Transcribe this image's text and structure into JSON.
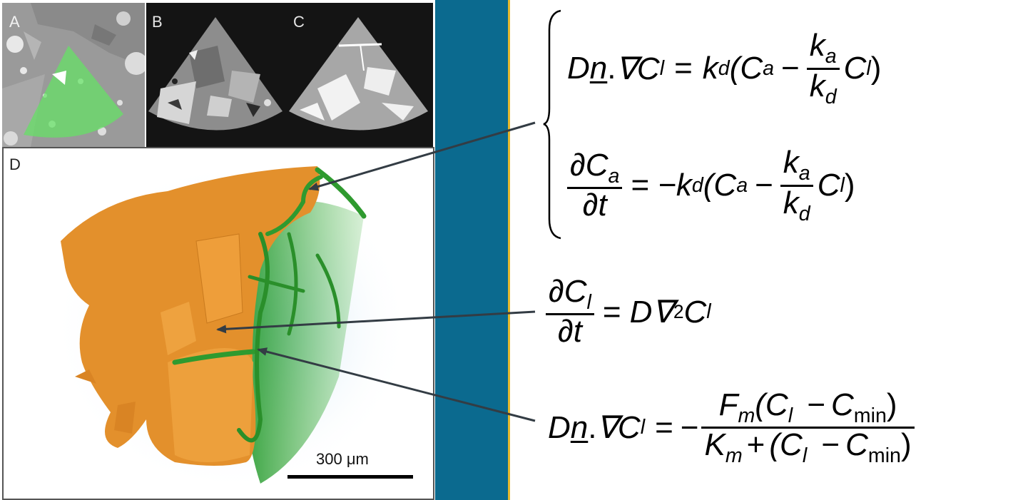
{
  "figure": {
    "panels": {
      "a": "A",
      "b": "B",
      "c": "C",
      "d": "D"
    },
    "scale_bar": "300 μm",
    "colors": {
      "divider_blue": "#0b6a8f",
      "divider_gold": "#e5b72c",
      "solid_orange": "#e3902c",
      "root_green": "#34a833",
      "panel_dark": "#141414"
    }
  },
  "equations": {
    "eq1": {
      "lhs_D": "D",
      "n": "n",
      "dot": ".",
      "nabla": "∇C",
      "sub_l": "l",
      "eq": "=",
      "k": "k",
      "sub_d": "d",
      "open": "(C",
      "sub_a": "a",
      "minus": "−",
      "frac_num_k": "k",
      "frac_num_sub": "a",
      "frac_den_k": "k",
      "frac_den_sub": "d",
      "tail": "C",
      "tail_sub": "l",
      "close": ")"
    },
    "eq2": {
      "num": "∂C",
      "num_sub": "a",
      "den": "∂t",
      "eq": "=",
      "rhs": "−k",
      "rhs_sub": "d",
      "open": "(C",
      "sub_a": "a",
      "minus": "−",
      "frac_num_k": "k",
      "frac_num_sub": "a",
      "frac_den_k": "k",
      "frac_den_sub": "d",
      "tail": "C",
      "tail_sub": "l",
      "close": ")"
    },
    "eq3": {
      "num": "∂C",
      "num_sub": "l",
      "den": "∂t",
      "eq": "=",
      "rhs_D": "D∇",
      "sup": "2",
      "rhs_C": "C",
      "rhs_sub": "l"
    },
    "eq4": {
      "lhs_D": "D",
      "n": "n",
      "dot": ".",
      "nabla": "∇C",
      "sub_l": "l",
      "eq": "=",
      "minus": "−",
      "num_F": "F",
      "num_F_sub": "m",
      "num_open": "(C",
      "num_l": "l",
      "num_minus": "−",
      "num_C": "C",
      "num_min": "min",
      "num_close": ")",
      "den_K": "K",
      "den_K_sub": "m",
      "den_plus": "+",
      "den_open": "(C",
      "den_l": "l",
      "den_minus": "−",
      "den_C": "C",
      "den_min": "min",
      "den_close": ")"
    }
  }
}
